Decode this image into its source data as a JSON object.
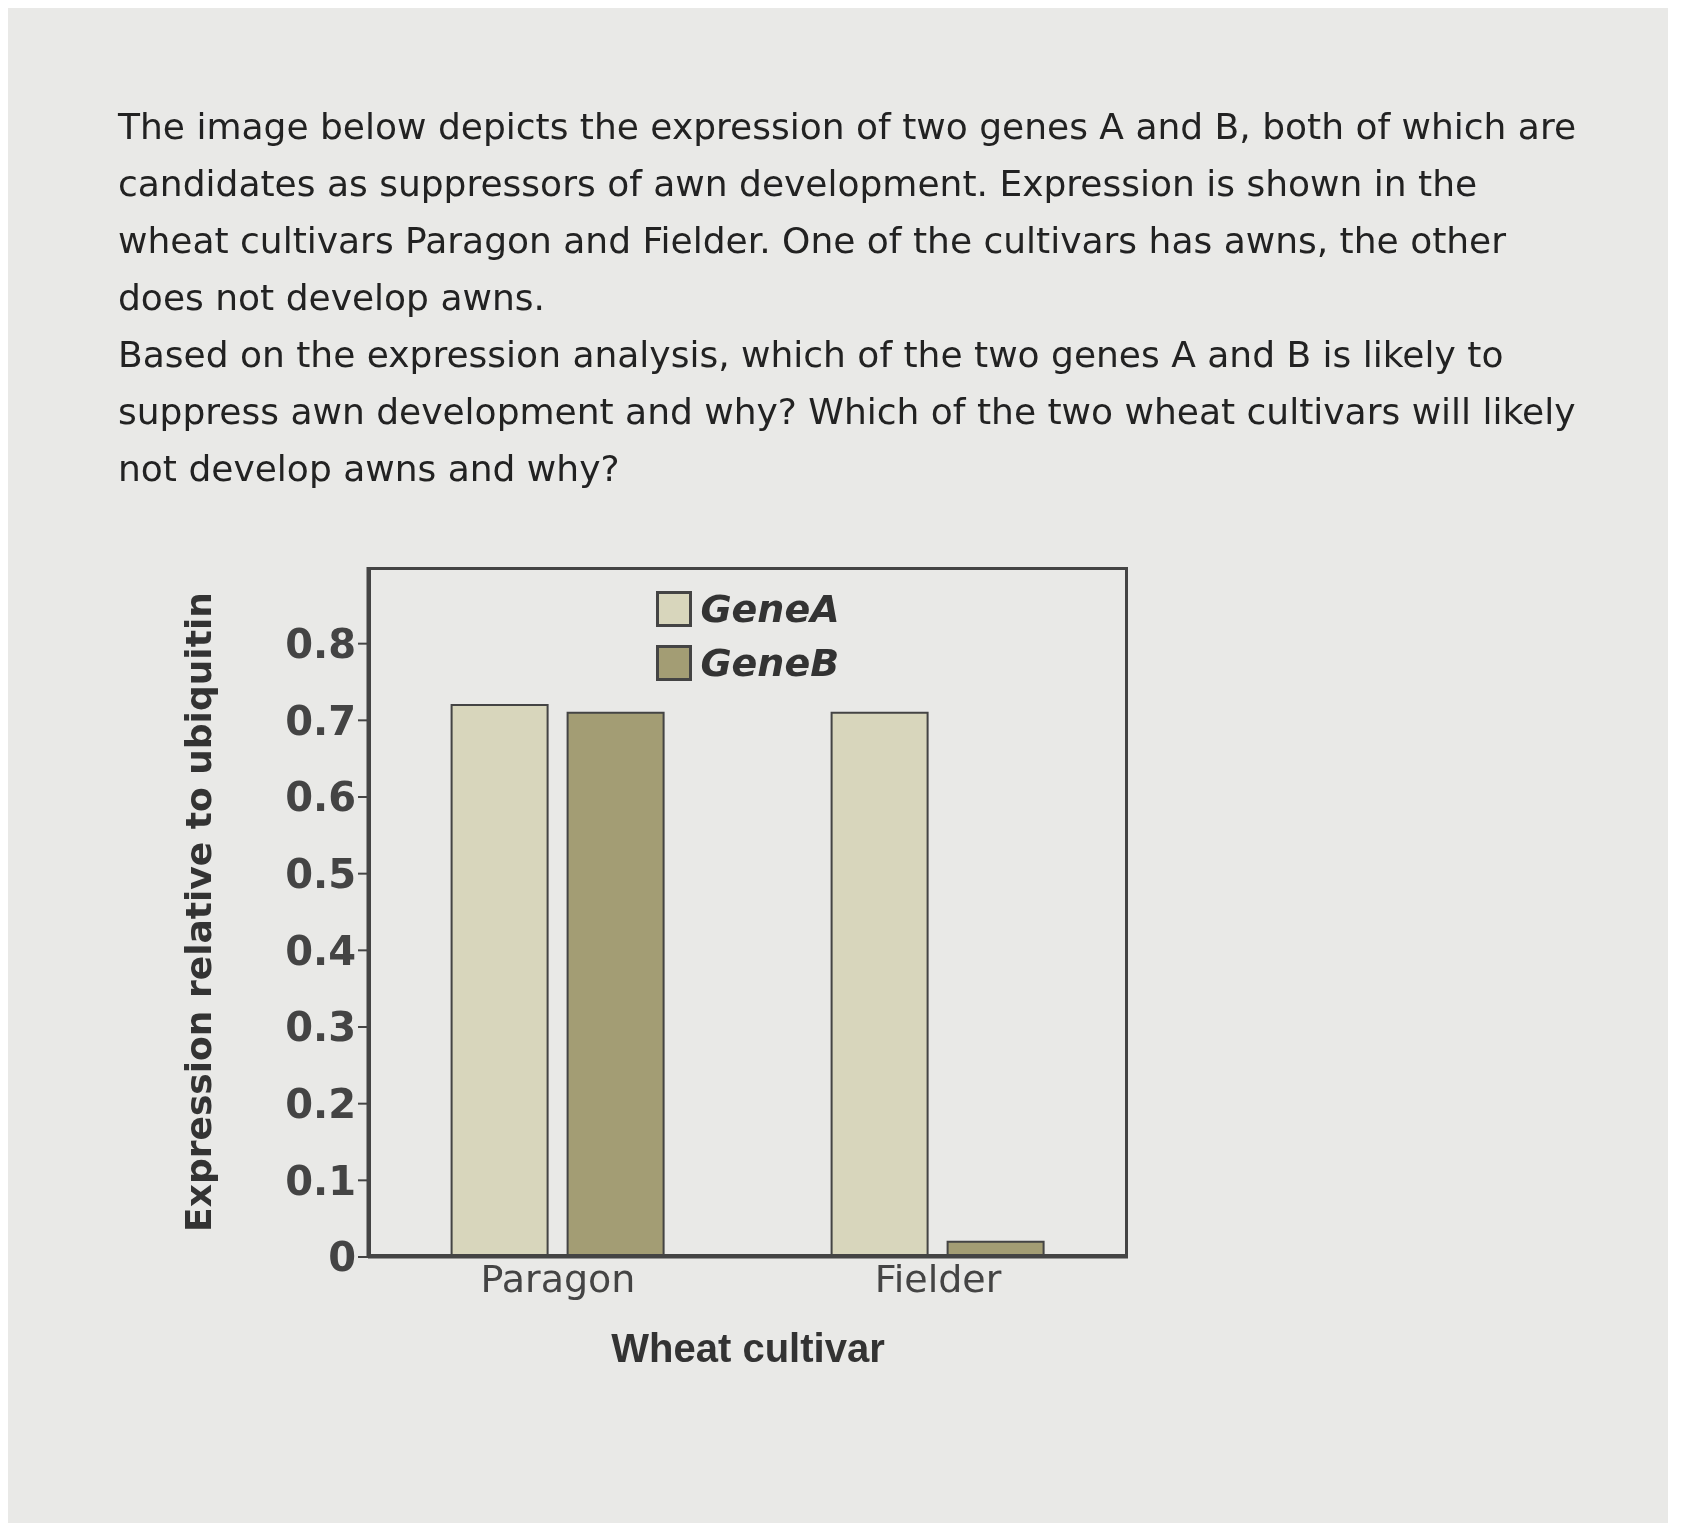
{
  "chart_data": {
    "type": "bar",
    "title": "The image below depicts the expression of two genes A and B, both of which are candidates as suppressors of awn development. Expression is shown in the wheat cultivars Paragon and Fielder. One of the cultivars has awns, the other does not develop awns.",
    "subtitle": "Based on the expression analysis, which of the two genes A and B is likely to suppress awn development and why? Which of the two wheat cultivars will likely not develop awns and why?",
    "xlabel": "Wheat cultivar",
    "ylabel": "Expression relative to ubiquitin",
    "categories": [
      "Paragon",
      "Fielder"
    ],
    "series": [
      {
        "name": "GeneA",
        "color": "#d8d6bc",
        "values": [
          0.72,
          0.71
        ]
      },
      {
        "name": "GeneB",
        "color": "#a39d74",
        "values": [
          0.71,
          0.02
        ]
      }
    ],
    "ylim": [
      0,
      0.9
    ],
    "yticks": [
      0,
      0.1,
      0.2,
      0.3,
      0.4,
      0.5,
      0.6,
      0.7,
      0.8
    ],
    "grid": false,
    "legend": "top"
  }
}
